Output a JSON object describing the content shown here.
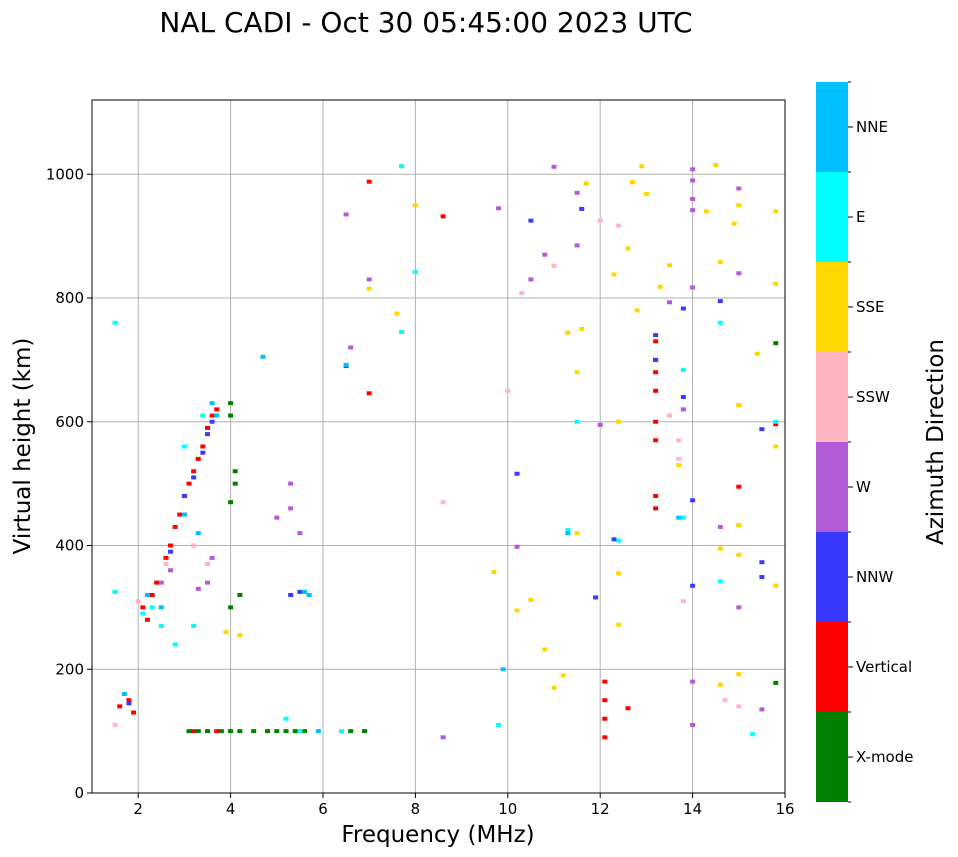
{
  "chart_data": {
    "type": "scatter",
    "title": "NAL CADI - Oct 30 05:45:00 2023 UTC",
    "xlabel": "Frequency (MHz)",
    "ylabel": "Virtual height (km)",
    "xlim": [
      1,
      16
    ],
    "ylim": [
      0,
      1120
    ],
    "xticks": [
      2,
      4,
      6,
      8,
      10,
      12,
      14,
      16
    ],
    "yticks": [
      0,
      200,
      400,
      600,
      800,
      1000
    ],
    "grid": true,
    "colorbar": {
      "label": "Azimuth Direction",
      "categories": [
        {
          "name": "X-mode",
          "color": "#008000"
        },
        {
          "name": "Vertical",
          "color": "#ff0000"
        },
        {
          "name": "NNW",
          "color": "#3a3aff"
        },
        {
          "name": "W",
          "color": "#b35ad6"
        },
        {
          "name": "SSW",
          "color": "#ffb6c1"
        },
        {
          "name": "SSE",
          "color": "#ffd700"
        },
        {
          "name": "E",
          "color": "#00ffff"
        },
        {
          "name": "NNE",
          "color": "#00bfff"
        }
      ]
    },
    "series": [
      {
        "name": "X-mode",
        "points": [
          [
            3.1,
            100
          ],
          [
            3.3,
            100
          ],
          [
            3.5,
            100
          ],
          [
            3.8,
            100
          ],
          [
            4.0,
            100
          ],
          [
            4.2,
            100
          ],
          [
            4.5,
            100
          ],
          [
            4.8,
            100
          ],
          [
            5.0,
            100
          ],
          [
            5.2,
            100
          ],
          [
            5.4,
            100
          ],
          [
            5.6,
            100
          ],
          [
            6.6,
            100
          ],
          [
            6.9,
            100
          ],
          [
            4.0,
            300
          ],
          [
            4.2,
            320
          ],
          [
            4.0,
            470
          ],
          [
            4.1,
            500
          ],
          [
            4.1,
            520
          ],
          [
            4.0,
            610
          ],
          [
            4.0,
            630
          ],
          [
            15.8,
            178
          ],
          [
            15.8,
            727
          ]
        ]
      },
      {
        "name": "Vertical",
        "points": [
          [
            1.6,
            140
          ],
          [
            1.8,
            150
          ],
          [
            1.9,
            130
          ],
          [
            2.1,
            300
          ],
          [
            2.2,
            280
          ],
          [
            2.3,
            320
          ],
          [
            2.4,
            340
          ],
          [
            2.6,
            380
          ],
          [
            2.7,
            400
          ],
          [
            2.8,
            430
          ],
          [
            2.9,
            450
          ],
          [
            3.0,
            480
          ],
          [
            3.1,
            500
          ],
          [
            3.2,
            520
          ],
          [
            3.3,
            540
          ],
          [
            3.4,
            560
          ],
          [
            3.5,
            590
          ],
          [
            3.6,
            610
          ],
          [
            3.7,
            620
          ],
          [
            3.2,
            100
          ],
          [
            3.7,
            100
          ],
          [
            12.1,
            90
          ],
          [
            12.1,
            120
          ],
          [
            12.1,
            150
          ],
          [
            12.1,
            180
          ],
          [
            13.2,
            570
          ],
          [
            13.2,
            600
          ],
          [
            13.2,
            650
          ],
          [
            13.2,
            680
          ],
          [
            13.2,
            700
          ],
          [
            13.2,
            730
          ],
          [
            13.2,
            460
          ],
          [
            13.2,
            480
          ],
          [
            12.6,
            137
          ],
          [
            8.6,
            932
          ],
          [
            7.0,
            988
          ],
          [
            7.0,
            646
          ],
          [
            15.8,
            596
          ],
          [
            15.0,
            495
          ]
        ]
      },
      {
        "name": "NNW",
        "points": [
          [
            1.8,
            145
          ],
          [
            2.7,
            390
          ],
          [
            3.0,
            480
          ],
          [
            3.2,
            510
          ],
          [
            3.4,
            550
          ],
          [
            3.5,
            580
          ],
          [
            3.6,
            600
          ],
          [
            5.3,
            320
          ],
          [
            5.5,
            325
          ],
          [
            6.5,
            690
          ],
          [
            10.2,
            516
          ],
          [
            10.5,
            925
          ],
          [
            11.6,
            944
          ],
          [
            11.9,
            316
          ],
          [
            13.2,
            740
          ],
          [
            13.2,
            700
          ],
          [
            13.8,
            640
          ],
          [
            13.8,
            783
          ],
          [
            14.0,
            473
          ],
          [
            14.0,
            335
          ],
          [
            14.6,
            795
          ],
          [
            15.5,
            588
          ],
          [
            15.5,
            373
          ],
          [
            15.5,
            349
          ],
          [
            12.3,
            410
          ]
        ]
      },
      {
        "name": "W",
        "points": [
          [
            2.5,
            340
          ],
          [
            2.7,
            360
          ],
          [
            3.3,
            330
          ],
          [
            3.5,
            340
          ],
          [
            3.6,
            380
          ],
          [
            5.0,
            445
          ],
          [
            5.3,
            460
          ],
          [
            5.3,
            500
          ],
          [
            5.5,
            420
          ],
          [
            6.5,
            935
          ],
          [
            6.6,
            720
          ],
          [
            7.0,
            830
          ],
          [
            9.8,
            945
          ],
          [
            10.2,
            398
          ],
          [
            10.5,
            830
          ],
          [
            10.8,
            870
          ],
          [
            11.0,
            1012
          ],
          [
            11.5,
            970
          ],
          [
            11.5,
            885
          ],
          [
            12.0,
            595
          ],
          [
            13.5,
            793
          ],
          [
            13.8,
            620
          ],
          [
            14.0,
            1008
          ],
          [
            14.0,
            990
          ],
          [
            14.0,
            960
          ],
          [
            14.0,
            942
          ],
          [
            14.0,
            817
          ],
          [
            14.0,
            180
          ],
          [
            14.0,
            110
          ],
          [
            14.6,
            430
          ],
          [
            15.0,
            977
          ],
          [
            15.0,
            840
          ],
          [
            15.0,
            300
          ],
          [
            15.5,
            135
          ],
          [
            8.6,
            90
          ]
        ]
      },
      {
        "name": "SSW",
        "points": [
          [
            1.5,
            110
          ],
          [
            2.0,
            310
          ],
          [
            2.6,
            370
          ],
          [
            3.2,
            400
          ],
          [
            3.5,
            370
          ],
          [
            8.6,
            470
          ],
          [
            10.0,
            650
          ],
          [
            10.3,
            808
          ],
          [
            11.0,
            852
          ],
          [
            12.0,
            925
          ],
          [
            12.4,
            917
          ],
          [
            13.5,
            610
          ],
          [
            13.7,
            570
          ],
          [
            13.7,
            540
          ],
          [
            13.8,
            310
          ],
          [
            14.7,
            150
          ],
          [
            15.0,
            140
          ]
        ]
      },
      {
        "name": "SSE",
        "points": [
          [
            3.9,
            260
          ],
          [
            4.2,
            255
          ],
          [
            8.0,
            950
          ],
          [
            7.0,
            815
          ],
          [
            7.6,
            775
          ],
          [
            9.7,
            357
          ],
          [
            10.2,
            295
          ],
          [
            10.5,
            312
          ],
          [
            10.8,
            232
          ],
          [
            11.0,
            170
          ],
          [
            11.2,
            190
          ],
          [
            11.3,
            744
          ],
          [
            11.5,
            680
          ],
          [
            11.5,
            420
          ],
          [
            11.6,
            750
          ],
          [
            11.7,
            985
          ],
          [
            12.3,
            838
          ],
          [
            12.4,
            600
          ],
          [
            12.4,
            355
          ],
          [
            12.4,
            272
          ],
          [
            12.6,
            880
          ],
          [
            12.7,
            987
          ],
          [
            12.8,
            780
          ],
          [
            12.9,
            1013
          ],
          [
            13.0,
            968
          ],
          [
            13.3,
            818
          ],
          [
            13.5,
            853
          ],
          [
            13.7,
            530
          ],
          [
            14.3,
            940
          ],
          [
            14.5,
            1015
          ],
          [
            14.6,
            858
          ],
          [
            14.6,
            395
          ],
          [
            14.6,
            175
          ],
          [
            14.9,
            920
          ],
          [
            15.0,
            950
          ],
          [
            15.0,
            627
          ],
          [
            15.0,
            433
          ],
          [
            15.0,
            385
          ],
          [
            15.0,
            192
          ],
          [
            15.4,
            710
          ],
          [
            15.8,
            940
          ],
          [
            15.8,
            823
          ],
          [
            15.8,
            560
          ],
          [
            15.8,
            335
          ]
        ]
      },
      {
        "name": "E",
        "points": [
          [
            1.5,
            760
          ],
          [
            1.5,
            325
          ],
          [
            2.1,
            290
          ],
          [
            2.3,
            300
          ],
          [
            2.5,
            270
          ],
          [
            2.8,
            240
          ],
          [
            3.0,
            560
          ],
          [
            3.2,
            270
          ],
          [
            3.4,
            610
          ],
          [
            5.2,
            120
          ],
          [
            5.5,
            100
          ],
          [
            6.4,
            100
          ],
          [
            7.7,
            1013
          ],
          [
            7.7,
            745
          ],
          [
            8.0,
            842
          ],
          [
            9.8,
            110
          ],
          [
            11.3,
            425
          ],
          [
            11.5,
            600
          ],
          [
            12.4,
            408
          ],
          [
            13.8,
            684
          ],
          [
            13.8,
            445
          ],
          [
            14.6,
            760
          ],
          [
            14.6,
            342
          ],
          [
            15.3,
            95
          ],
          [
            15.8,
            600
          ]
        ]
      },
      {
        "name": "NNE",
        "points": [
          [
            1.7,
            160
          ],
          [
            2.2,
            320
          ],
          [
            2.5,
            300
          ],
          [
            3.0,
            450
          ],
          [
            3.3,
            420
          ],
          [
            3.6,
            630
          ],
          [
            3.7,
            610
          ],
          [
            4.7,
            705
          ],
          [
            5.6,
            325
          ],
          [
            5.7,
            320
          ],
          [
            5.9,
            100
          ],
          [
            6.5,
            692
          ],
          [
            9.9,
            200
          ],
          [
            11.3,
            420
          ],
          [
            13.7,
            445
          ]
        ]
      }
    ]
  }
}
